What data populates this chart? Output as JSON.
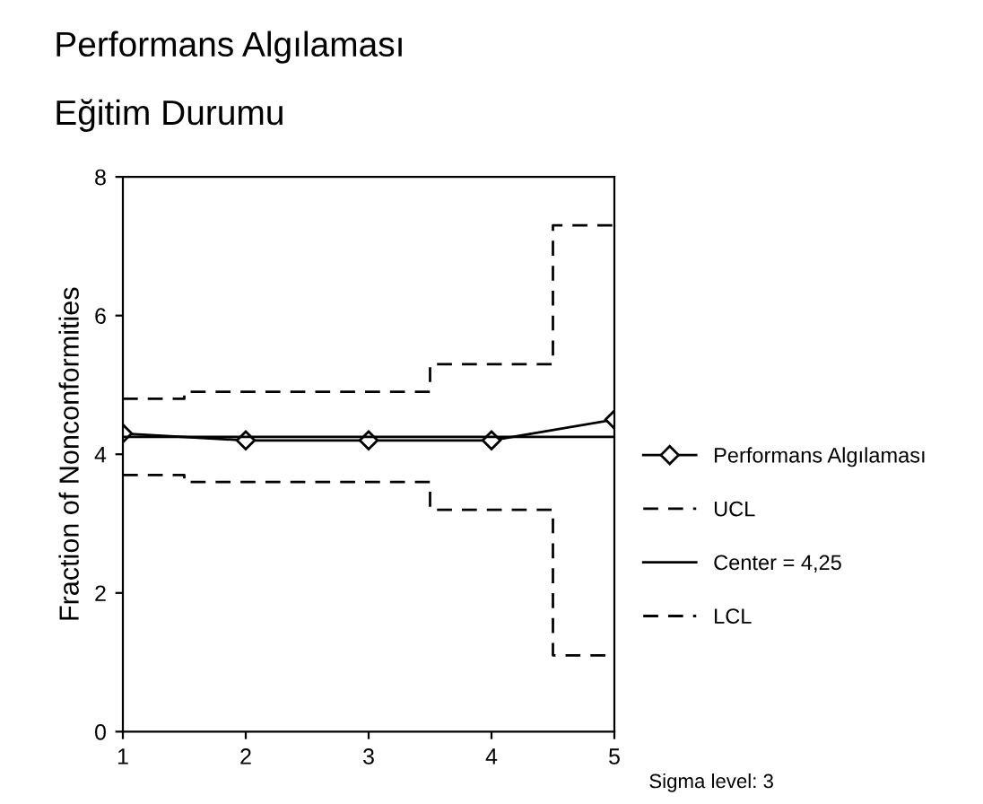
{
  "chart_data": {
    "type": "line",
    "title": "Performans Algılaması",
    "subtitle": "Eğitim Durumu",
    "ylabel": "Fraction of Nonconformities",
    "x": [
      1,
      2,
      3,
      4,
      5
    ],
    "series": [
      {
        "name": "Performans Algılaması",
        "color": "#000000",
        "values": [
          4.3,
          4.2,
          4.2,
          4.2,
          4.5
        ],
        "marker": "diamond",
        "line_style": "solid"
      },
      {
        "name": "UCL",
        "type": "step",
        "color": "#000000",
        "values": [
          4.8,
          4.9,
          4.9,
          5.3,
          7.3
        ],
        "marker": "none",
        "line_style": "dashed"
      },
      {
        "name": "LCL",
        "type": "step",
        "color": "#000000",
        "values": [
          3.7,
          3.6,
          3.6,
          3.2,
          1.1
        ],
        "marker": "none",
        "line_style": "dashed"
      }
    ],
    "ref_lines": [
      {
        "axis": "y",
        "value": 4.25,
        "label": "Center = 4,25",
        "color": "#000000",
        "line_style": "solid"
      }
    ],
    "annotations": [
      "Sigma level: 3"
    ],
    "xlim": [
      1,
      5
    ],
    "ylim": [
      0,
      8
    ],
    "xticks": [
      1,
      2,
      3,
      4,
      5
    ],
    "yticks": [
      0,
      2,
      4,
      6,
      8
    ],
    "grid": false,
    "legend": "right"
  }
}
